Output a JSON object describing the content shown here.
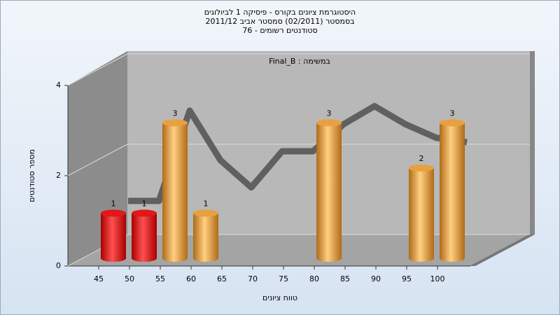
{
  "chart_data": {
    "type": "bar",
    "title": "היסטוגרמת ציונים בקורס - פיסיקה 1 לביולוגים",
    "subtitle": "בסמסטר  (02/2011)  סמסטר אביב 2011/12",
    "subtitle2": "סטודנטים רשומים - 76",
    "annotation": "Final_B : במשימה",
    "x_label": "טווח ציונים",
    "y_label": "מספר סטודנטים",
    "categories": [
      "45",
      "50",
      "55",
      "60",
      "65",
      "70",
      "75",
      "80",
      "85",
      "90",
      "95",
      "100"
    ],
    "series": [
      {
        "type": "bar",
        "values": [
          1,
          1,
          3,
          1,
          0,
          0,
          0,
          3,
          0,
          0,
          2,
          3
        ],
        "colors": [
          "#e01818",
          "#e01818",
          "#e8a040",
          "#e8a040",
          "#e8a040",
          "#e8a040",
          "#e8a040",
          "#e8a040",
          "#e8a040",
          "#e8a040",
          "#e8a040",
          "#e8a040"
        ]
      },
      {
        "type": "line",
        "color": "#606060",
        "values": [
          1.1,
          1.1,
          3.1,
          2.0,
          1.4,
          2.2,
          2.2,
          2.8,
          3.2,
          2.8,
          2.5,
          2.4
        ]
      }
    ],
    "ylim": [
      0,
      4
    ],
    "yticks": [
      0,
      2,
      4
    ],
    "grid": true
  }
}
